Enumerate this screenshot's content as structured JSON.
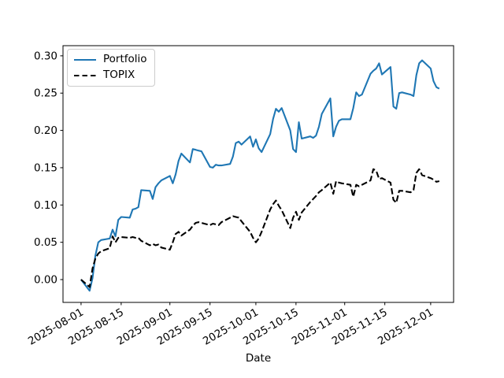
{
  "legend": {
    "items": [
      {
        "label": "Portfolio",
        "color": "#1f77b4",
        "sample_dash": "100 0"
      },
      {
        "label": "TOPIX",
        "color": "#000000",
        "sample_dash": "6.5 4"
      }
    ]
  },
  "chart_data": {
    "type": "line",
    "title": "",
    "xlabel": "Date",
    "ylabel": "",
    "grid": false,
    "legend_position": "upper left",
    "ylim": [
      -0.0306,
      0.3136
    ],
    "xlim_days": [
      -6.3,
      130.0
    ],
    "yticks": [
      0.0,
      0.05,
      0.1,
      0.15,
      0.2,
      0.25,
      0.3
    ],
    "ytick_labels": [
      "0.00",
      "0.05",
      "0.10",
      "0.15",
      "0.20",
      "0.25",
      "0.30"
    ],
    "xtick_dates": [
      "2025-08-01",
      "2025-08-15",
      "2025-09-01",
      "2025-09-15",
      "2025-10-01",
      "2025-10-15",
      "2025-11-01",
      "2025-11-15",
      "2025-12-01"
    ],
    "x": [
      "2025-08-01",
      "2025-08-04",
      "2025-08-05",
      "2025-08-06",
      "2025-08-07",
      "2025-08-08",
      "2025-08-11",
      "2025-08-12",
      "2025-08-13",
      "2025-08-14",
      "2025-08-15",
      "2025-08-18",
      "2025-08-19",
      "2025-08-20",
      "2025-08-21",
      "2025-08-22",
      "2025-08-25",
      "2025-08-26",
      "2025-08-27",
      "2025-08-28",
      "2025-08-29",
      "2025-09-01",
      "2025-09-02",
      "2025-09-03",
      "2025-09-04",
      "2025-09-05",
      "2025-09-08",
      "2025-09-09",
      "2025-09-10",
      "2025-09-11",
      "2025-09-12",
      "2025-09-15",
      "2025-09-16",
      "2025-09-17",
      "2025-09-18",
      "2025-09-19",
      "2025-09-22",
      "2025-09-23",
      "2025-09-24",
      "2025-09-25",
      "2025-09-26",
      "2025-09-29",
      "2025-09-30",
      "2025-10-01",
      "2025-10-02",
      "2025-10-03",
      "2025-10-06",
      "2025-10-07",
      "2025-10-08",
      "2025-10-09",
      "2025-10-10",
      "2025-10-13",
      "2025-10-14",
      "2025-10-15",
      "2025-10-16",
      "2025-10-17",
      "2025-10-20",
      "2025-10-21",
      "2025-10-22",
      "2025-10-23",
      "2025-10-24",
      "2025-10-27",
      "2025-10-28",
      "2025-10-29",
      "2025-10-30",
      "2025-10-31",
      "2025-11-03",
      "2025-11-04",
      "2025-11-05",
      "2025-11-06",
      "2025-11-07",
      "2025-11-10",
      "2025-11-11",
      "2025-11-12",
      "2025-11-13",
      "2025-11-14",
      "2025-11-17",
      "2025-11-18",
      "2025-11-19",
      "2025-11-20",
      "2025-11-21",
      "2025-11-24",
      "2025-11-25",
      "2025-11-26",
      "2025-11-27",
      "2025-11-28",
      "2025-12-01",
      "2025-12-02",
      "2025-12-03",
      "2025-12-04"
    ],
    "series": [
      {
        "name": "Portfolio",
        "color": "#1f77b4",
        "style": "solid",
        "values": [
          0.0,
          -0.015,
          0.002,
          0.032,
          0.05,
          0.053,
          0.055,
          0.067,
          0.058,
          0.08,
          0.084,
          0.083,
          0.094,
          0.095,
          0.097,
          0.12,
          0.119,
          0.108,
          0.124,
          0.129,
          0.133,
          0.139,
          0.129,
          0.141,
          0.159,
          0.169,
          0.157,
          0.175,
          0.174,
          0.173,
          0.172,
          0.151,
          0.15,
          0.154,
          0.153,
          0.153,
          0.155,
          0.165,
          0.183,
          0.185,
          0.181,
          0.192,
          0.178,
          0.188,
          0.176,
          0.171,
          0.195,
          0.215,
          0.229,
          0.225,
          0.23,
          0.2,
          0.175,
          0.171,
          0.211,
          0.189,
          0.192,
          0.19,
          0.193,
          0.205,
          0.222,
          0.243,
          0.192,
          0.205,
          0.213,
          0.215,
          0.215,
          0.23,
          0.251,
          0.246,
          0.248,
          0.276,
          0.28,
          0.283,
          0.29,
          0.275,
          0.285,
          0.232,
          0.229,
          0.25,
          0.251,
          0.248,
          0.246,
          0.274,
          0.29,
          0.294,
          0.283,
          0.266,
          0.258,
          0.256
        ]
      },
      {
        "name": "TOPIX",
        "color": "#000000",
        "style": "dashed",
        "values": [
          0.0,
          -0.01,
          0.015,
          0.028,
          0.035,
          0.038,
          0.042,
          0.058,
          0.05,
          0.056,
          0.057,
          0.056,
          0.057,
          0.056,
          0.056,
          0.052,
          0.046,
          0.048,
          0.046,
          0.047,
          0.043,
          0.04,
          0.05,
          0.061,
          0.064,
          0.059,
          0.067,
          0.072,
          0.076,
          0.077,
          0.076,
          0.073,
          0.075,
          0.074,
          0.073,
          0.077,
          0.083,
          0.085,
          0.084,
          0.083,
          0.078,
          0.064,
          0.056,
          0.05,
          0.055,
          0.064,
          0.094,
          0.101,
          0.106,
          0.099,
          0.093,
          0.069,
          0.083,
          0.091,
          0.08,
          0.09,
          0.104,
          0.108,
          0.112,
          0.117,
          0.12,
          0.13,
          0.115,
          0.132,
          0.13,
          0.129,
          0.127,
          0.111,
          0.127,
          0.125,
          0.127,
          0.133,
          0.148,
          0.146,
          0.135,
          0.136,
          0.13,
          0.107,
          0.103,
          0.119,
          0.119,
          0.117,
          0.12,
          0.143,
          0.148,
          0.14,
          0.136,
          0.134,
          0.131,
          0.132
        ]
      }
    ]
  }
}
